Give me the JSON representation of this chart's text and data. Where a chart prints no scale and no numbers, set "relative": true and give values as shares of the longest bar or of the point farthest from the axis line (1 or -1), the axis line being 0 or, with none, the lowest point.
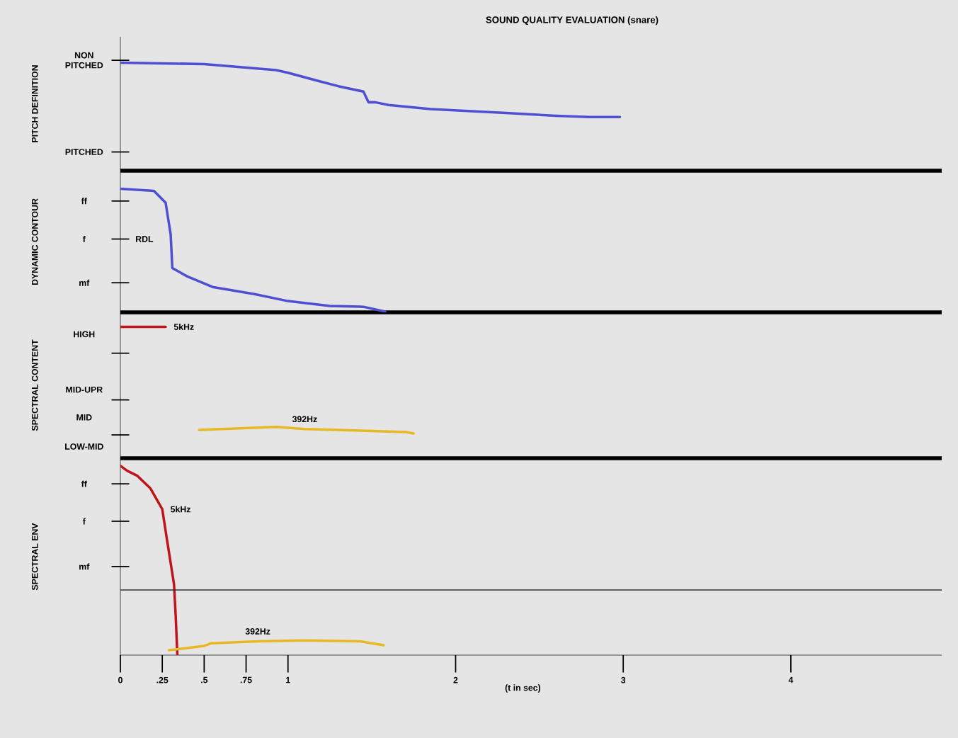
{
  "chart_data": [
    {
      "type": "line",
      "title": "SOUND QUALITY EVALUATION (snare)",
      "ylabel": "PITCH DEFINITION",
      "xlim": [
        0,
        4.9
      ],
      "relative": true,
      "annotations": [
        "NON PITCHED",
        "PITCHED"
      ],
      "series": [
        {
          "color": "#4f4fd2",
          "x": [
            0,
            0.5,
            0.93,
            1.0,
            1.18,
            1.3,
            1.45,
            1.48,
            1.52,
            1.6,
            1.85,
            2.3,
            2.6,
            2.8,
            2.98
          ],
          "values": [
            1,
            0.988,
            0.932,
            0.907,
            0.832,
            0.783,
            0.733,
            0.634,
            0.634,
            0.609,
            0.571,
            0.534,
            0.509,
            0.497,
            0.497
          ]
        }
      ]
    },
    {
      "type": "line",
      "ylabel": "DYNAMIC CONTOUR",
      "xlim": [
        0,
        4.9
      ],
      "relative": true,
      "annotations": [
        "ff",
        "f",
        "mf",
        "RDL"
      ],
      "series": [
        {
          "color": "#4f4fd2",
          "x": [
            0,
            0.2,
            0.27,
            0.3,
            0.31,
            0.4,
            0.55,
            0.8,
            1.0,
            1.25,
            1.45,
            1.58
          ],
          "values": [
            1,
            0.983,
            0.886,
            0.631,
            0.358,
            0.29,
            0.205,
            0.148,
            0.091,
            0.051,
            0.045,
            0.006
          ]
        }
      ]
    },
    {
      "type": "line",
      "ylabel": "SPECTRAL CONTENT",
      "xlim": [
        0,
        4.9
      ],
      "relative": true,
      "annotations": [
        "HIGH",
        "MID-UPR",
        "MID",
        "LOW-MID"
      ],
      "series": [
        {
          "name": "5kHz",
          "color": "#c0141c",
          "x": [
            0,
            0.27
          ],
          "values": [
            1,
            1
          ]
        },
        {
          "name": "392Hz",
          "color": "#e8b822",
          "x": [
            0.47,
            0.93,
            1.1,
            1.7,
            1.75
          ],
          "values": [
            0.216,
            0.238,
            0.222,
            0.2,
            0.189
          ]
        }
      ]
    },
    {
      "type": "line",
      "ylabel": "SPECTRAL ENV",
      "xlabel": "(t in sec)",
      "xlim": [
        0,
        4.9
      ],
      "relative": true,
      "xticks": [
        0,
        {
          "value": 0.25,
          "label": ".25"
        },
        {
          "value": 0.5,
          "label": ".5"
        },
        {
          "value": 0.75,
          "label": ".75"
        },
        1,
        2,
        3,
        4
      ],
      "annotations": [
        "ff",
        "f",
        "mf"
      ],
      "ref_lines": [
        {
          "axis": "y",
          "value": 0.344,
          "color": "#333333"
        }
      ],
      "series": [
        {
          "name": "5kHz",
          "color": "#c0141c",
          "x": [
            0,
            0.04,
            0.1,
            0.18,
            0.25,
            0.28,
            0.32,
            0.33,
            0.34
          ],
          "values": [
            1,
            0.974,
            0.948,
            0.88,
            0.771,
            0.599,
            0.375,
            0.208,
            0
          ]
        },
        {
          "name": "392Hz",
          "color": "#e8b822",
          "x": [
            0.29,
            0.5,
            0.54,
            0.82,
            1.1,
            1.43,
            1.57
          ],
          "values": [
            0.026,
            0.049,
            0.0625,
            0.073,
            0.078,
            0.073,
            0.052
          ]
        }
      ]
    }
  ]
}
